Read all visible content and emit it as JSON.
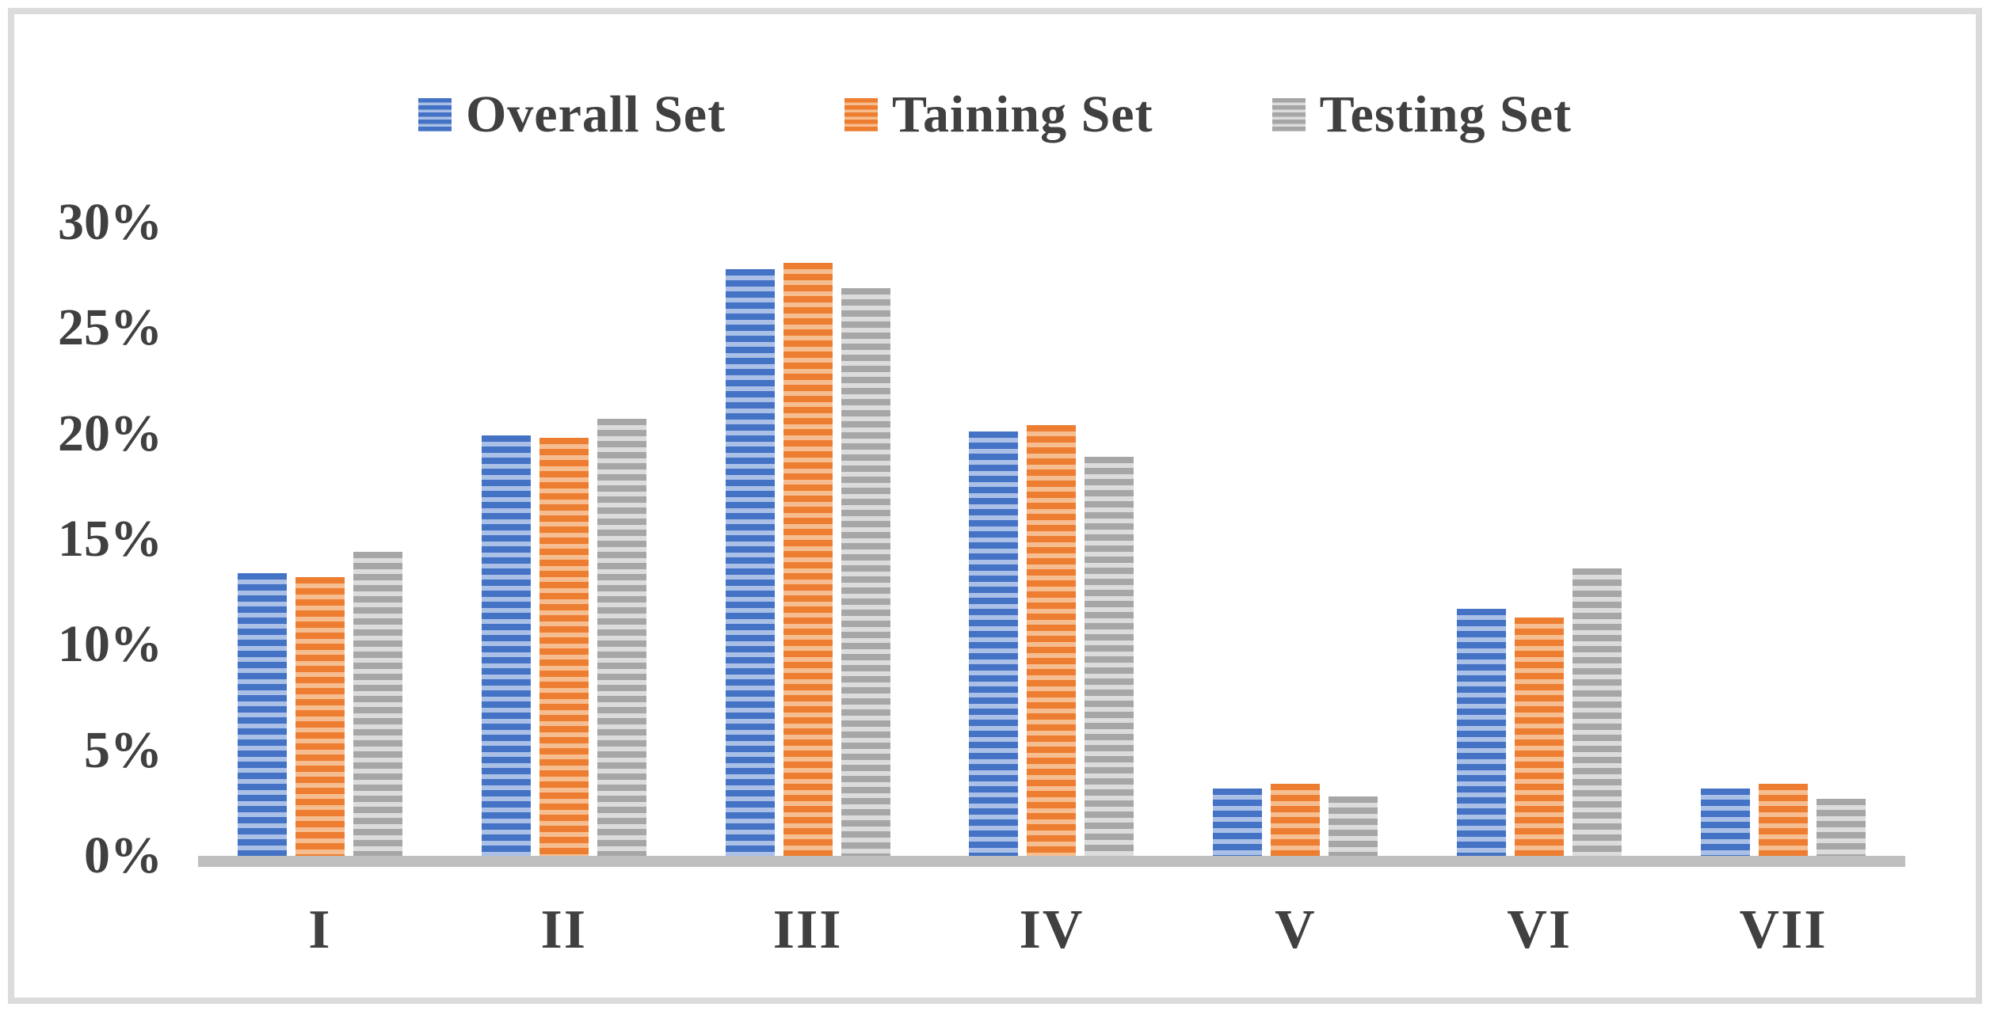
{
  "chart_data": {
    "type": "bar",
    "title": "",
    "xlabel": "",
    "ylabel": "",
    "categories": [
      "I",
      "II",
      "III",
      "IV",
      "V",
      "VI",
      "VII"
    ],
    "series": [
      {
        "name": "Overall Set",
        "values": [
          13.4,
          19.9,
          27.8,
          20.1,
          3.2,
          11.7,
          3.2
        ],
        "color": "#4472C4",
        "stripe_color": "#AAC0E7"
      },
      {
        "name": "Taining Set",
        "values": [
          13.2,
          19.8,
          28.1,
          20.4,
          3.4,
          11.3,
          3.4
        ],
        "color": "#ED7D31",
        "stripe_color": "#F6BE90"
      },
      {
        "name": "Testing Set",
        "values": [
          14.4,
          20.7,
          26.9,
          18.9,
          2.8,
          13.6,
          2.7
        ],
        "color": "#A6A6A6",
        "stripe_color": "#DCDCDC"
      }
    ],
    "ylim": [
      0,
      30
    ],
    "y_ticks": [
      "0%",
      "5%",
      "10%",
      "15%",
      "20%",
      "25%",
      "30%"
    ],
    "y_tick_values": [
      0,
      5,
      10,
      15,
      20,
      25,
      30
    ],
    "grid": false,
    "legend_position": "top-center"
  },
  "colors": {
    "background": "#FFFFFF",
    "frame_border": "#DBDBDB",
    "axis_line": "#BFBFBF",
    "text": "#404040"
  }
}
